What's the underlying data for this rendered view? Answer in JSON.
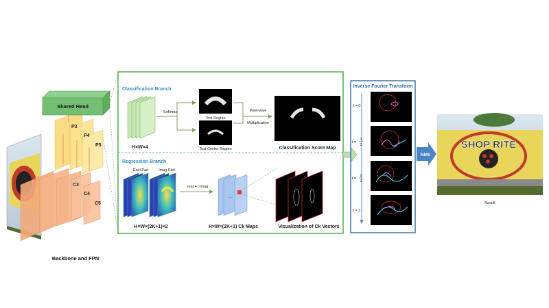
{
  "backbone": {
    "shared_head": "Shared Head",
    "levels": [
      "P3",
      "P4",
      "P5",
      "C3",
      "C4",
      "C5"
    ],
    "caption": "Backbone and FPN"
  },
  "classification": {
    "title": "Classification Branch",
    "input_shape": "H×W×4",
    "softmax": "Softmax",
    "text_region": "Text Region",
    "text_center_region": "Text Center Region",
    "pixelwise_1": "Pixel-wise",
    "pixelwise_2": "Multiplication",
    "score_map": "Classification Score Map"
  },
  "regression": {
    "title": "Regression Branch",
    "real_part": "Real Part",
    "imag_part": "Imag Part",
    "input_shape": "H×W×(2K+1)×2",
    "combine": "real + i·imag",
    "ck_maps": "H×W×(2K+1) Ck Maps",
    "viz": "Visualization of Ck Vectors"
  },
  "ift": {
    "title": "Inverse Fourier Transform",
    "t0": "t = 0",
    "t1": "t = 1",
    "t_third_num": "1",
    "t_two_third_num": "2",
    "t_den": "3",
    "t_prefix": "t ="
  },
  "nms": "NMS",
  "result": {
    "caption": "Result",
    "sign_text": "SHOP RITE"
  },
  "colors": {
    "green_box": "#4caf50",
    "blue_box": "#2e6da4",
    "orange": "#f4a97a",
    "yellow": "#fbd97a",
    "arrow": "#7fb7d9"
  }
}
